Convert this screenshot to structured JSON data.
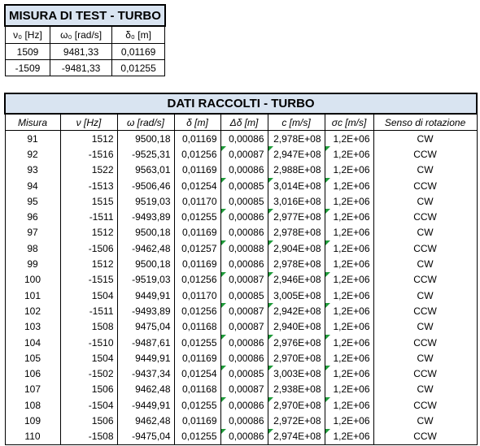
{
  "test_table": {
    "title": "MISURA DI TEST - TURBO",
    "headers": [
      "ν₀ [Hz]",
      "ω₀ [rad/s]",
      "δ₀ [m]"
    ],
    "rows": [
      [
        "1509",
        "9481,33",
        "0,01169"
      ],
      [
        "-1509",
        "-9481,33",
        "0,01255"
      ]
    ]
  },
  "data_table": {
    "title": "DATI RACCOLTI - TURBO",
    "headers": [
      "Misura",
      "ν [Hz]",
      "ω [rad/s]",
      "δ [m]",
      "Δδ [m]",
      "c [m/s]",
      "σc [m/s]",
      "Senso di rotazione"
    ],
    "rows": [
      [
        "91",
        "1512",
        "9500,18",
        "0,01169",
        "0,00086",
        "2,978E+08",
        "1,2E+06",
        "CW"
      ],
      [
        "92",
        "-1516",
        "-9525,31",
        "0,01256",
        "0,00087",
        "2,947E+08",
        "1,2E+06",
        "CCW"
      ],
      [
        "93",
        "1522",
        "9563,01",
        "0,01169",
        "0,00086",
        "2,988E+08",
        "1,2E+06",
        "CW"
      ],
      [
        "94",
        "-1513",
        "-9506,46",
        "0,01254",
        "0,00085",
        "3,014E+08",
        "1,2E+06",
        "CCW"
      ],
      [
        "95",
        "1515",
        "9519,03",
        "0,01170",
        "0,00085",
        "3,016E+08",
        "1,2E+06",
        "CW"
      ],
      [
        "96",
        "-1511",
        "-9493,89",
        "0,01255",
        "0,00086",
        "2,977E+08",
        "1,2E+06",
        "CCW"
      ],
      [
        "97",
        "1512",
        "9500,18",
        "0,01169",
        "0,00086",
        "2,978E+08",
        "1,2E+06",
        "CW"
      ],
      [
        "98",
        "-1506",
        "-9462,48",
        "0,01257",
        "0,00088",
        "2,904E+08",
        "1,2E+06",
        "CCW"
      ],
      [
        "99",
        "1512",
        "9500,18",
        "0,01169",
        "0,00086",
        "2,978E+08",
        "1,2E+06",
        "CW"
      ],
      [
        "100",
        "-1515",
        "-9519,03",
        "0,01256",
        "0,00087",
        "2,946E+08",
        "1,2E+06",
        "CCW"
      ],
      [
        "101",
        "1504",
        "9449,91",
        "0,01170",
        "0,00085",
        "3,005E+08",
        "1,2E+06",
        "CW"
      ],
      [
        "102",
        "-1511",
        "-9493,89",
        "0,01256",
        "0,00087",
        "2,942E+08",
        "1,2E+06",
        "CCW"
      ],
      [
        "103",
        "1508",
        "9475,04",
        "0,01168",
        "0,00087",
        "2,940E+08",
        "1,2E+06",
        "CW"
      ],
      [
        "104",
        "-1510",
        "-9487,61",
        "0,01255",
        "0,00086",
        "2,976E+08",
        "1,2E+06",
        "CCW"
      ],
      [
        "105",
        "1504",
        "9449,91",
        "0,01169",
        "0,00086",
        "2,970E+08",
        "1,2E+06",
        "CW"
      ],
      [
        "106",
        "-1502",
        "-9437,34",
        "0,01254",
        "0,00085",
        "3,003E+08",
        "1,2E+06",
        "CCW"
      ],
      [
        "107",
        "1506",
        "9462,48",
        "0,01168",
        "0,00087",
        "2,938E+08",
        "1,2E+06",
        "CW"
      ],
      [
        "108",
        "-1504",
        "-9449,91",
        "0,01255",
        "0,00086",
        "2,970E+08",
        "1,2E+06",
        "CCW"
      ],
      [
        "109",
        "1506",
        "9462,48",
        "0,01169",
        "0,00086",
        "2,972E+08",
        "1,2E+06",
        "CW"
      ],
      [
        "110",
        "-1508",
        "-9475,04",
        "0,01255",
        "0,00086",
        "2,974E+08",
        "1,2E+06",
        "CCW"
      ]
    ]
  },
  "colors": {
    "header_fill": "#d9e4f1",
    "cell_flag": "#1f9b3a"
  }
}
